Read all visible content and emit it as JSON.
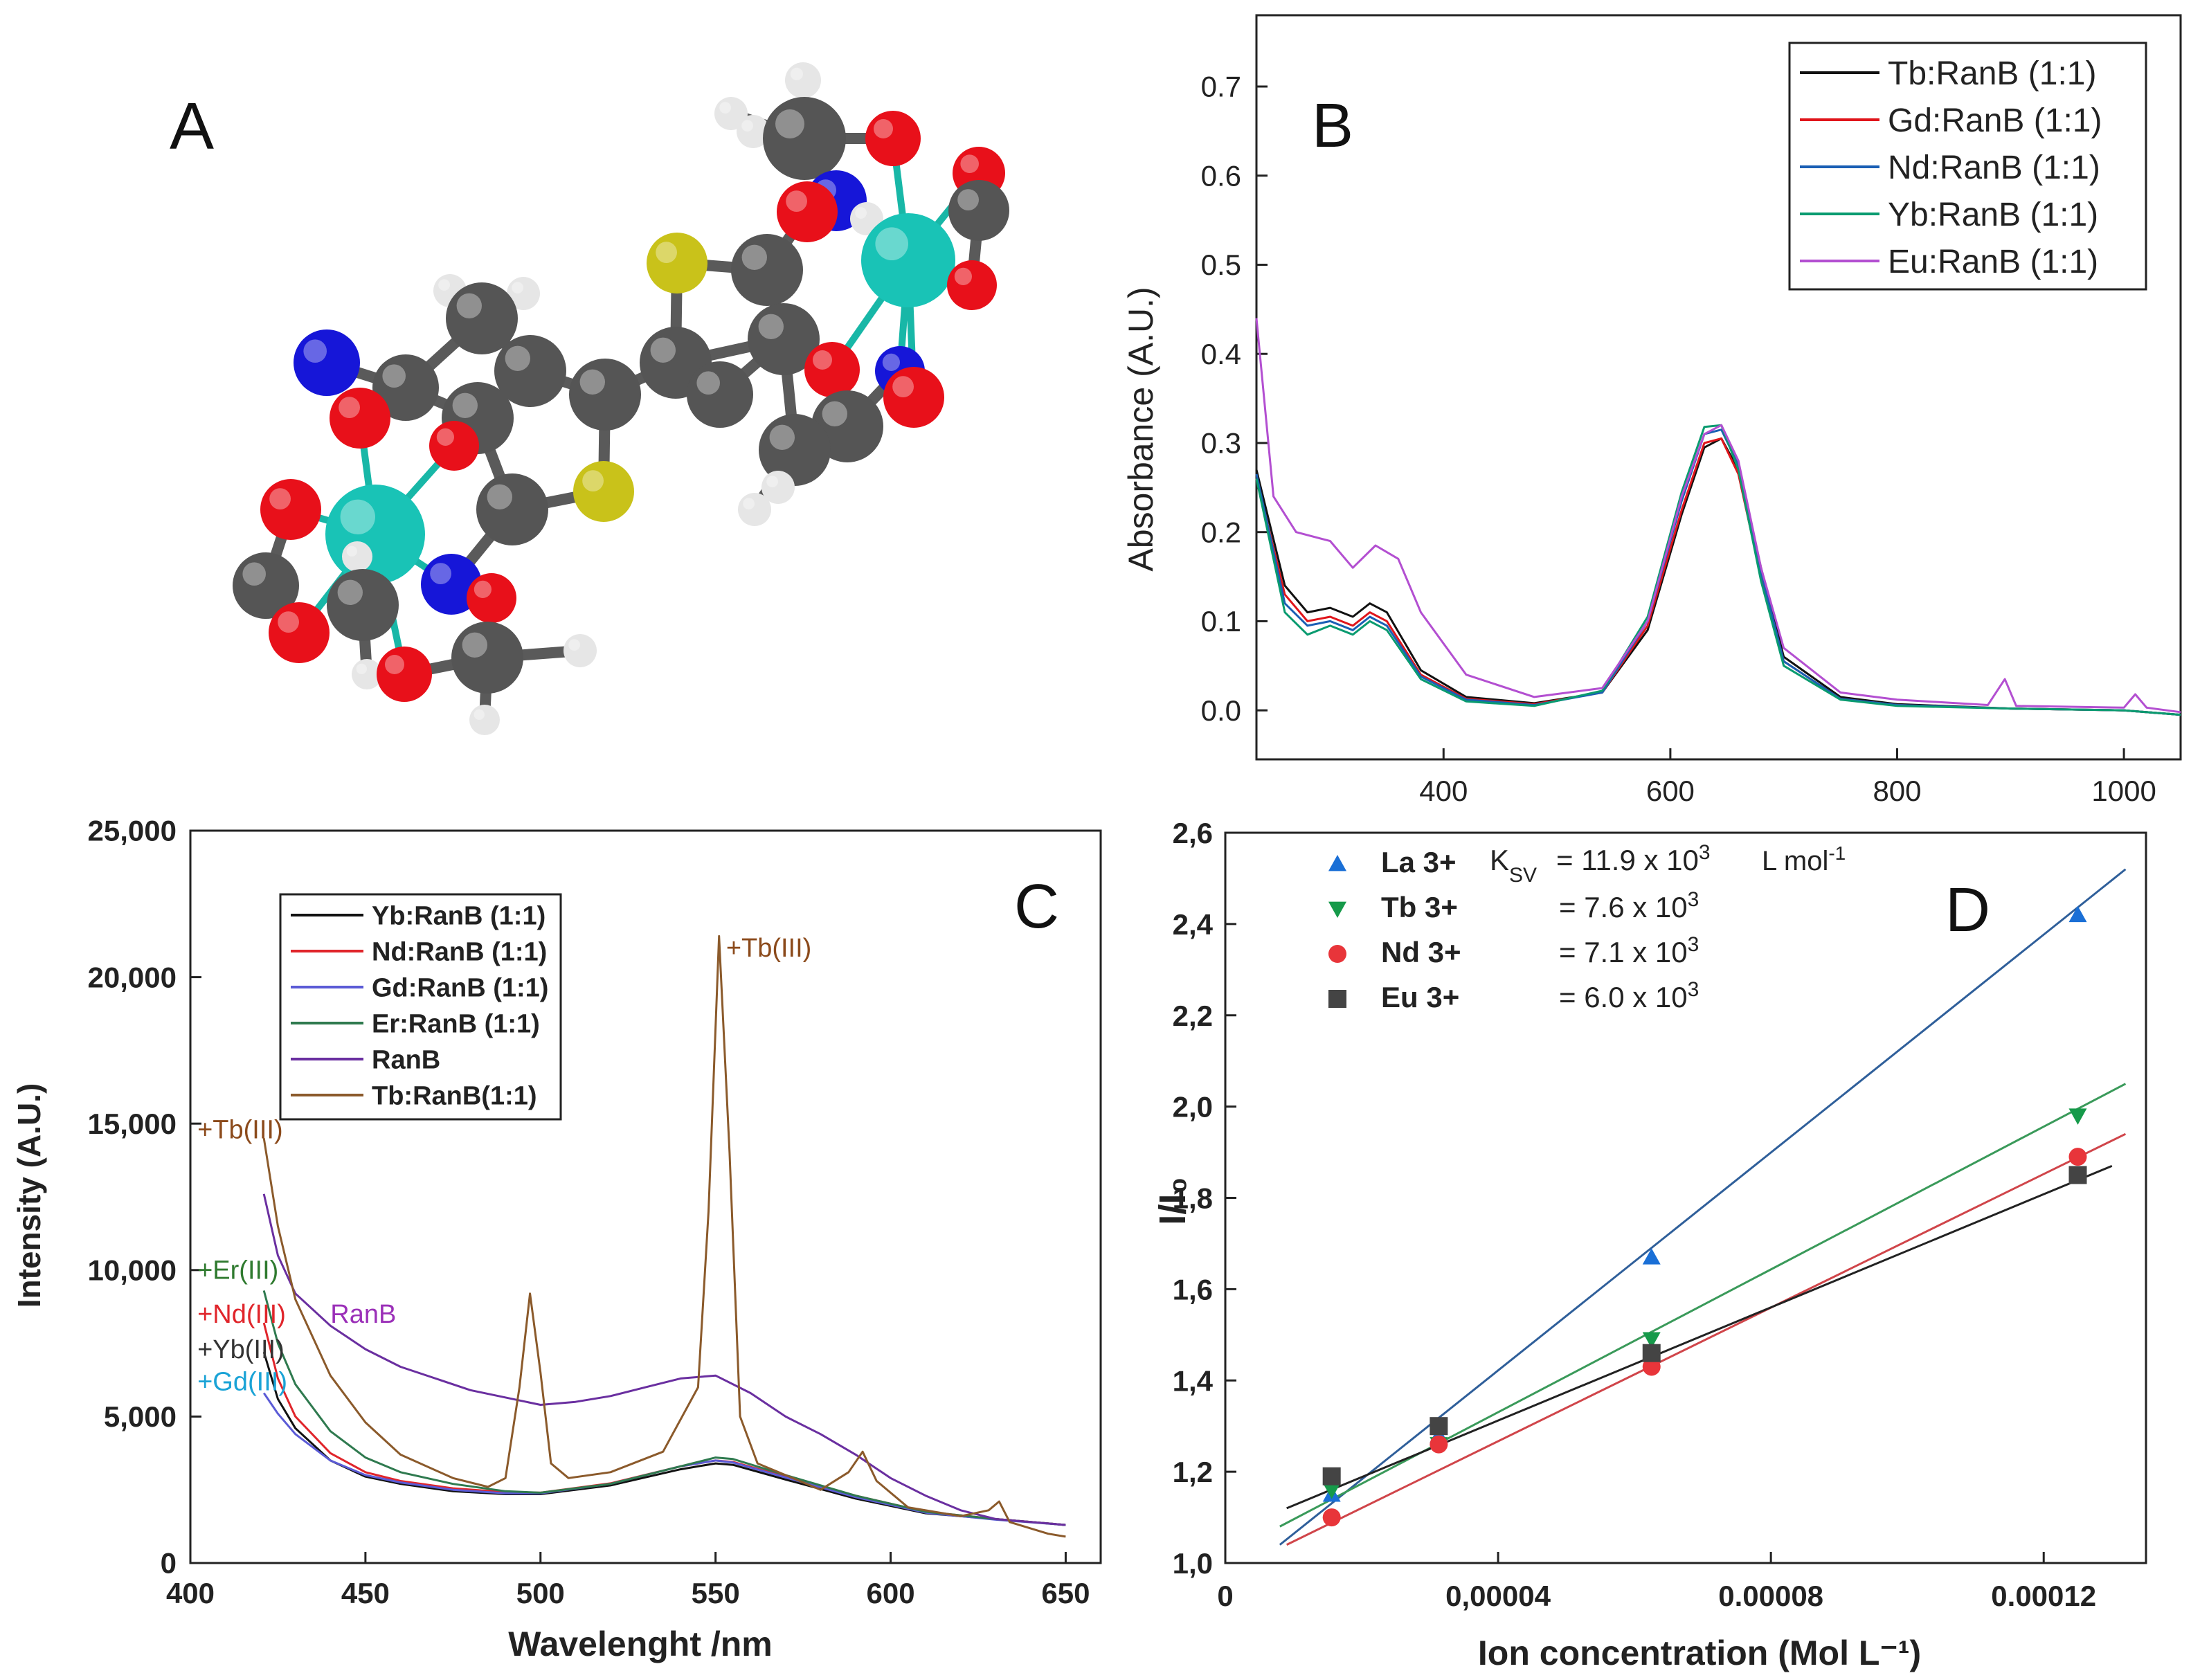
{
  "panel_labels": {
    "a": "A",
    "b": "B",
    "c": "C",
    "d": "D"
  },
  "colors": {
    "carbon": "#555555",
    "oxygen": "#e8101a",
    "nitrogen": "#1616d8",
    "sulfur": "#c9c21a",
    "hydrogen": "#e6e6e6",
    "metal": "#19c3b6",
    "metal_bond": "#18b7a7"
  },
  "chart_data": [
    {
      "id": "B",
      "type": "line",
      "title": "",
      "xlabel": "",
      "ylabel": "Absorbance (A.U.)",
      "xlim": [
        235,
        1050
      ],
      "ylim": [
        -0.055,
        0.78
      ],
      "x_ticks": [
        "400",
        "600",
        "800",
        "1000"
      ],
      "x_tick_values": [
        400,
        600,
        800,
        1000
      ],
      "y_ticks": [
        "0.0",
        "0.1",
        "0.2",
        "0.3",
        "0.4",
        "0.5",
        "0.6",
        "0.7"
      ],
      "y_tick_values": [
        0,
        0.1,
        0.2,
        0.3,
        0.4,
        0.5,
        0.6,
        0.7
      ],
      "legend_position": "top-right",
      "series": [
        {
          "name": "Tb:RanB (1:1)",
          "color": "#111111",
          "x": [
            235,
            260,
            280,
            300,
            320,
            335,
            350,
            380,
            420,
            480,
            540,
            580,
            610,
            630,
            645,
            660,
            680,
            700,
            750,
            800,
            900,
            1000,
            1050
          ],
          "y": [
            0.27,
            0.14,
            0.11,
            0.115,
            0.105,
            0.12,
            0.11,
            0.045,
            0.015,
            0.008,
            0.02,
            0.09,
            0.22,
            0.295,
            0.305,
            0.27,
            0.16,
            0.06,
            0.015,
            0.007,
            0.002,
            0.0,
            -0.005
          ]
        },
        {
          "name": "Gd:RanB (1:1)",
          "color": "#e0151b",
          "x": [
            235,
            260,
            280,
            300,
            320,
            335,
            350,
            380,
            420,
            480,
            540,
            580,
            610,
            630,
            645,
            660,
            680,
            700,
            750,
            800,
            900,
            1000,
            1050
          ],
          "y": [
            0.26,
            0.13,
            0.1,
            0.105,
            0.095,
            0.11,
            0.1,
            0.04,
            0.013,
            0.007,
            0.02,
            0.095,
            0.225,
            0.3,
            0.305,
            0.265,
            0.15,
            0.055,
            0.013,
            0.006,
            0.002,
            0.0,
            -0.005
          ]
        },
        {
          "name": "Nd:RanB (1:1)",
          "color": "#1a5fb4",
          "x": [
            235,
            260,
            280,
            300,
            320,
            335,
            350,
            380,
            420,
            480,
            540,
            580,
            610,
            630,
            645,
            660,
            680,
            700,
            750,
            800,
            900,
            1000,
            1050
          ],
          "y": [
            0.265,
            0.12,
            0.095,
            0.1,
            0.09,
            0.105,
            0.095,
            0.038,
            0.012,
            0.006,
            0.02,
            0.1,
            0.235,
            0.31,
            0.315,
            0.275,
            0.155,
            0.055,
            0.013,
            0.006,
            0.002,
            0.0,
            -0.005
          ]
        },
        {
          "name": "Yb:RanB (1:1)",
          "color": "#0a9b70",
          "x": [
            235,
            260,
            280,
            300,
            320,
            335,
            350,
            380,
            420,
            480,
            540,
            580,
            610,
            630,
            645,
            660,
            680,
            700,
            750,
            800,
            900,
            1000,
            1050
          ],
          "y": [
            0.26,
            0.11,
            0.085,
            0.095,
            0.085,
            0.1,
            0.09,
            0.035,
            0.01,
            0.005,
            0.022,
            0.105,
            0.245,
            0.318,
            0.32,
            0.27,
            0.145,
            0.05,
            0.012,
            0.005,
            0.002,
            0.0,
            -0.005
          ]
        },
        {
          "name": "Eu:RanB (1:1)",
          "color": "#b34fd1",
          "x": [
            235,
            250,
            270,
            300,
            320,
            340,
            360,
            380,
            420,
            480,
            540,
            580,
            610,
            630,
            645,
            660,
            680,
            700,
            750,
            800,
            880,
            895,
            905,
            1000,
            1010,
            1020,
            1050
          ],
          "y": [
            0.44,
            0.24,
            0.2,
            0.19,
            0.16,
            0.185,
            0.17,
            0.11,
            0.04,
            0.015,
            0.025,
            0.1,
            0.24,
            0.31,
            0.32,
            0.28,
            0.16,
            0.07,
            0.02,
            0.012,
            0.006,
            0.035,
            0.005,
            0.003,
            0.018,
            0.003,
            -0.002
          ]
        }
      ]
    },
    {
      "id": "C",
      "type": "line",
      "title": "",
      "xlabel": "Wavelenght /nm",
      "ylabel": "Intensity (A.U.)",
      "xlim": [
        400,
        660
      ],
      "ylim": [
        0,
        25000
      ],
      "x_ticks": [
        "400",
        "450",
        "500",
        "550",
        "600",
        "650"
      ],
      "x_tick_values": [
        400,
        450,
        500,
        550,
        600,
        650
      ],
      "y_ticks": [
        "0",
        "5,000",
        "10,000",
        "15,000",
        "20,000",
        "25,000"
      ],
      "y_tick_values": [
        0,
        5000,
        10000,
        15000,
        20000,
        25000
      ],
      "legend_position": "top-left",
      "annotations": [
        {
          "text": "+Tb(III)",
          "color": "#8b4a1b",
          "x": 553,
          "y": 20700
        },
        {
          "text": "+Tb(III)",
          "color": "#8b4a1b",
          "x": 402,
          "y": 14500
        },
        {
          "text": "+Er(III)",
          "color": "#2f7a2f",
          "x": 402,
          "y": 9700
        },
        {
          "text": "RanB",
          "color": "#9b30b8",
          "x": 440,
          "y": 8200
        },
        {
          "text": "+Nd(III)",
          "color": "#e0252b",
          "x": 402,
          "y": 8200
        },
        {
          "text": "+Yb(III)",
          "color": "#333333",
          "x": 402,
          "y": 7000
        },
        {
          "text": "+Gd(III)",
          "color": "#1aa3d6",
          "x": 402,
          "y": 5900
        }
      ],
      "series": [
        {
          "name": "Yb:RanB (1:1)",
          "color": "#111111",
          "x": [
            421,
            425,
            430,
            440,
            450,
            460,
            475,
            490,
            500,
            520,
            540,
            550,
            555,
            570,
            590,
            610,
            630,
            650
          ],
          "y": [
            7200,
            5600,
            4600,
            3500,
            2950,
            2700,
            2450,
            2350,
            2350,
            2650,
            3200,
            3400,
            3350,
            2850,
            2200,
            1700,
            1500,
            1300
          ]
        },
        {
          "name": "Nd:RanB (1:1)",
          "color": "#e0252b",
          "x": [
            421,
            425,
            430,
            440,
            450,
            460,
            475,
            490,
            500,
            520,
            540,
            550,
            555,
            570,
            590,
            610,
            630,
            650
          ],
          "y": [
            8200,
            6300,
            5000,
            3750,
            3100,
            2800,
            2550,
            2420,
            2400,
            2720,
            3300,
            3500,
            3450,
            2950,
            2300,
            1750,
            1500,
            1300
          ]
        },
        {
          "name": "Gd:RanB (1:1)",
          "color": "#5b5bd6",
          "x": [
            421,
            425,
            430,
            440,
            450,
            460,
            475,
            490,
            500,
            520,
            540,
            550,
            555,
            570,
            590,
            610,
            630,
            650
          ],
          "y": [
            5800,
            5100,
            4400,
            3500,
            3000,
            2750,
            2500,
            2380,
            2380,
            2700,
            3300,
            3500,
            3430,
            2920,
            2250,
            1720,
            1480,
            1300
          ]
        },
        {
          "name": "Er:RanB (1:1)",
          "color": "#2f7a4f",
          "x": [
            421,
            425,
            430,
            440,
            450,
            460,
            475,
            490,
            500,
            520,
            540,
            550,
            555,
            570,
            590,
            610,
            630,
            650
          ],
          "y": [
            9300,
            7500,
            6100,
            4500,
            3600,
            3100,
            2700,
            2450,
            2400,
            2700,
            3300,
            3600,
            3550,
            3000,
            2300,
            1750,
            1500,
            1300
          ]
        },
        {
          "name": "RanB",
          "color": "#6a2fa0",
          "x": [
            421,
            425,
            430,
            440,
            450,
            460,
            480,
            500,
            510,
            520,
            530,
            540,
            550,
            560,
            570,
            580,
            590,
            600,
            610,
            620,
            630,
            650
          ],
          "y": [
            12600,
            10500,
            9200,
            8100,
            7300,
            6700,
            5900,
            5400,
            5500,
            5700,
            6000,
            6300,
            6400,
            5800,
            5000,
            4400,
            3700,
            2900,
            2300,
            1800,
            1500,
            1300
          ]
        },
        {
          "name": "Tb:RanB(1:1)",
          "color": "#8b5a2b",
          "x": [
            421,
            425,
            430,
            440,
            450,
            460,
            475,
            485,
            490,
            494,
            497,
            500,
            503,
            508,
            520,
            535,
            545,
            548,
            551,
            554,
            557,
            562,
            570,
            580,
            588,
            592,
            596,
            605,
            620,
            628,
            631,
            634,
            645,
            650
          ],
          "y": [
            14500,
            11500,
            9000,
            6400,
            4800,
            3700,
            2900,
            2600,
            2900,
            6000,
            9200,
            6500,
            3400,
            2900,
            3100,
            3800,
            6000,
            12000,
            21400,
            14000,
            5000,
            3400,
            3000,
            2500,
            3100,
            3800,
            2800,
            1900,
            1600,
            1800,
            2100,
            1400,
            1000,
            900
          ]
        }
      ]
    },
    {
      "id": "D",
      "type": "scatter",
      "title": "",
      "xlabel": "Ion concentration (Mol L⁻¹)",
      "ylabel": "I/I₀",
      "xlim": [
        0,
        0.000135
      ],
      "ylim": [
        1.0,
        2.6
      ],
      "x_ticks": [
        "0",
        "0,00004",
        "0.00008",
        "0.00012"
      ],
      "x_tick_values": [
        0,
        4e-05,
        8e-05,
        0.00012
      ],
      "y_ticks": [
        "1,0",
        "1,2",
        "1,4",
        "1,6",
        "1,8",
        "2,0",
        "2,2",
        "2,4",
        "2,6"
      ],
      "y_tick_values": [
        1.0,
        1.2,
        1.4,
        1.6,
        1.8,
        2.0,
        2.2,
        2.4,
        2.6
      ],
      "legend_position": "top-left",
      "ksv_header": {
        "symbol": "K",
        "subscript": "SV",
        "unit": "L mol",
        "unit_exp": "-1"
      },
      "series": [
        {
          "name": "La 3+",
          "marker": "triangle-up",
          "color": "#1a6fd6",
          "line_color": "#2f5f9a",
          "ksv": "= 11.9 x 10",
          "ksv_exp": "3",
          "x": [
            1.56e-05,
            3.13e-05,
            6.25e-05,
            0.000125
          ],
          "y": [
            1.15,
            1.28,
            1.67,
            2.42
          ],
          "fit": [
            [
              8e-06,
              1.04
            ],
            [
              0.000132,
              2.52
            ]
          ]
        },
        {
          "name": "Tb 3+",
          "marker": "triangle-down",
          "color": "#169a4a",
          "line_color": "#3a9a5a",
          "ksv": "=  7.6 x 10",
          "ksv_exp": "3",
          "x": [
            1.56e-05,
            3.13e-05,
            6.25e-05,
            0.000125
          ],
          "y": [
            1.16,
            1.26,
            1.49,
            1.98
          ],
          "fit": [
            [
              8e-06,
              1.08
            ],
            [
              0.000132,
              2.05
            ]
          ]
        },
        {
          "name": "Nd 3+",
          "marker": "circle",
          "color": "#e8353a",
          "line_color": "#d0454a",
          "ksv": "=  7.1 x 10",
          "ksv_exp": "3",
          "x": [
            1.56e-05,
            3.13e-05,
            6.25e-05,
            0.000125
          ],
          "y": [
            1.1,
            1.26,
            1.43,
            1.89
          ],
          "fit": [
            [
              9e-06,
              1.04
            ],
            [
              0.000132,
              1.94
            ]
          ]
        },
        {
          "name": "Eu 3+",
          "marker": "square",
          "color": "#444444",
          "line_color": "#222222",
          "ksv": "=  6.0 x 10",
          "ksv_exp": "3",
          "x": [
            1.56e-05,
            3.13e-05,
            6.25e-05,
            0.000125
          ],
          "y": [
            1.19,
            1.3,
            1.46,
            1.85
          ],
          "fit": [
            [
              9e-06,
              1.12
            ],
            [
              0.00013,
              1.87
            ]
          ]
        }
      ]
    }
  ]
}
